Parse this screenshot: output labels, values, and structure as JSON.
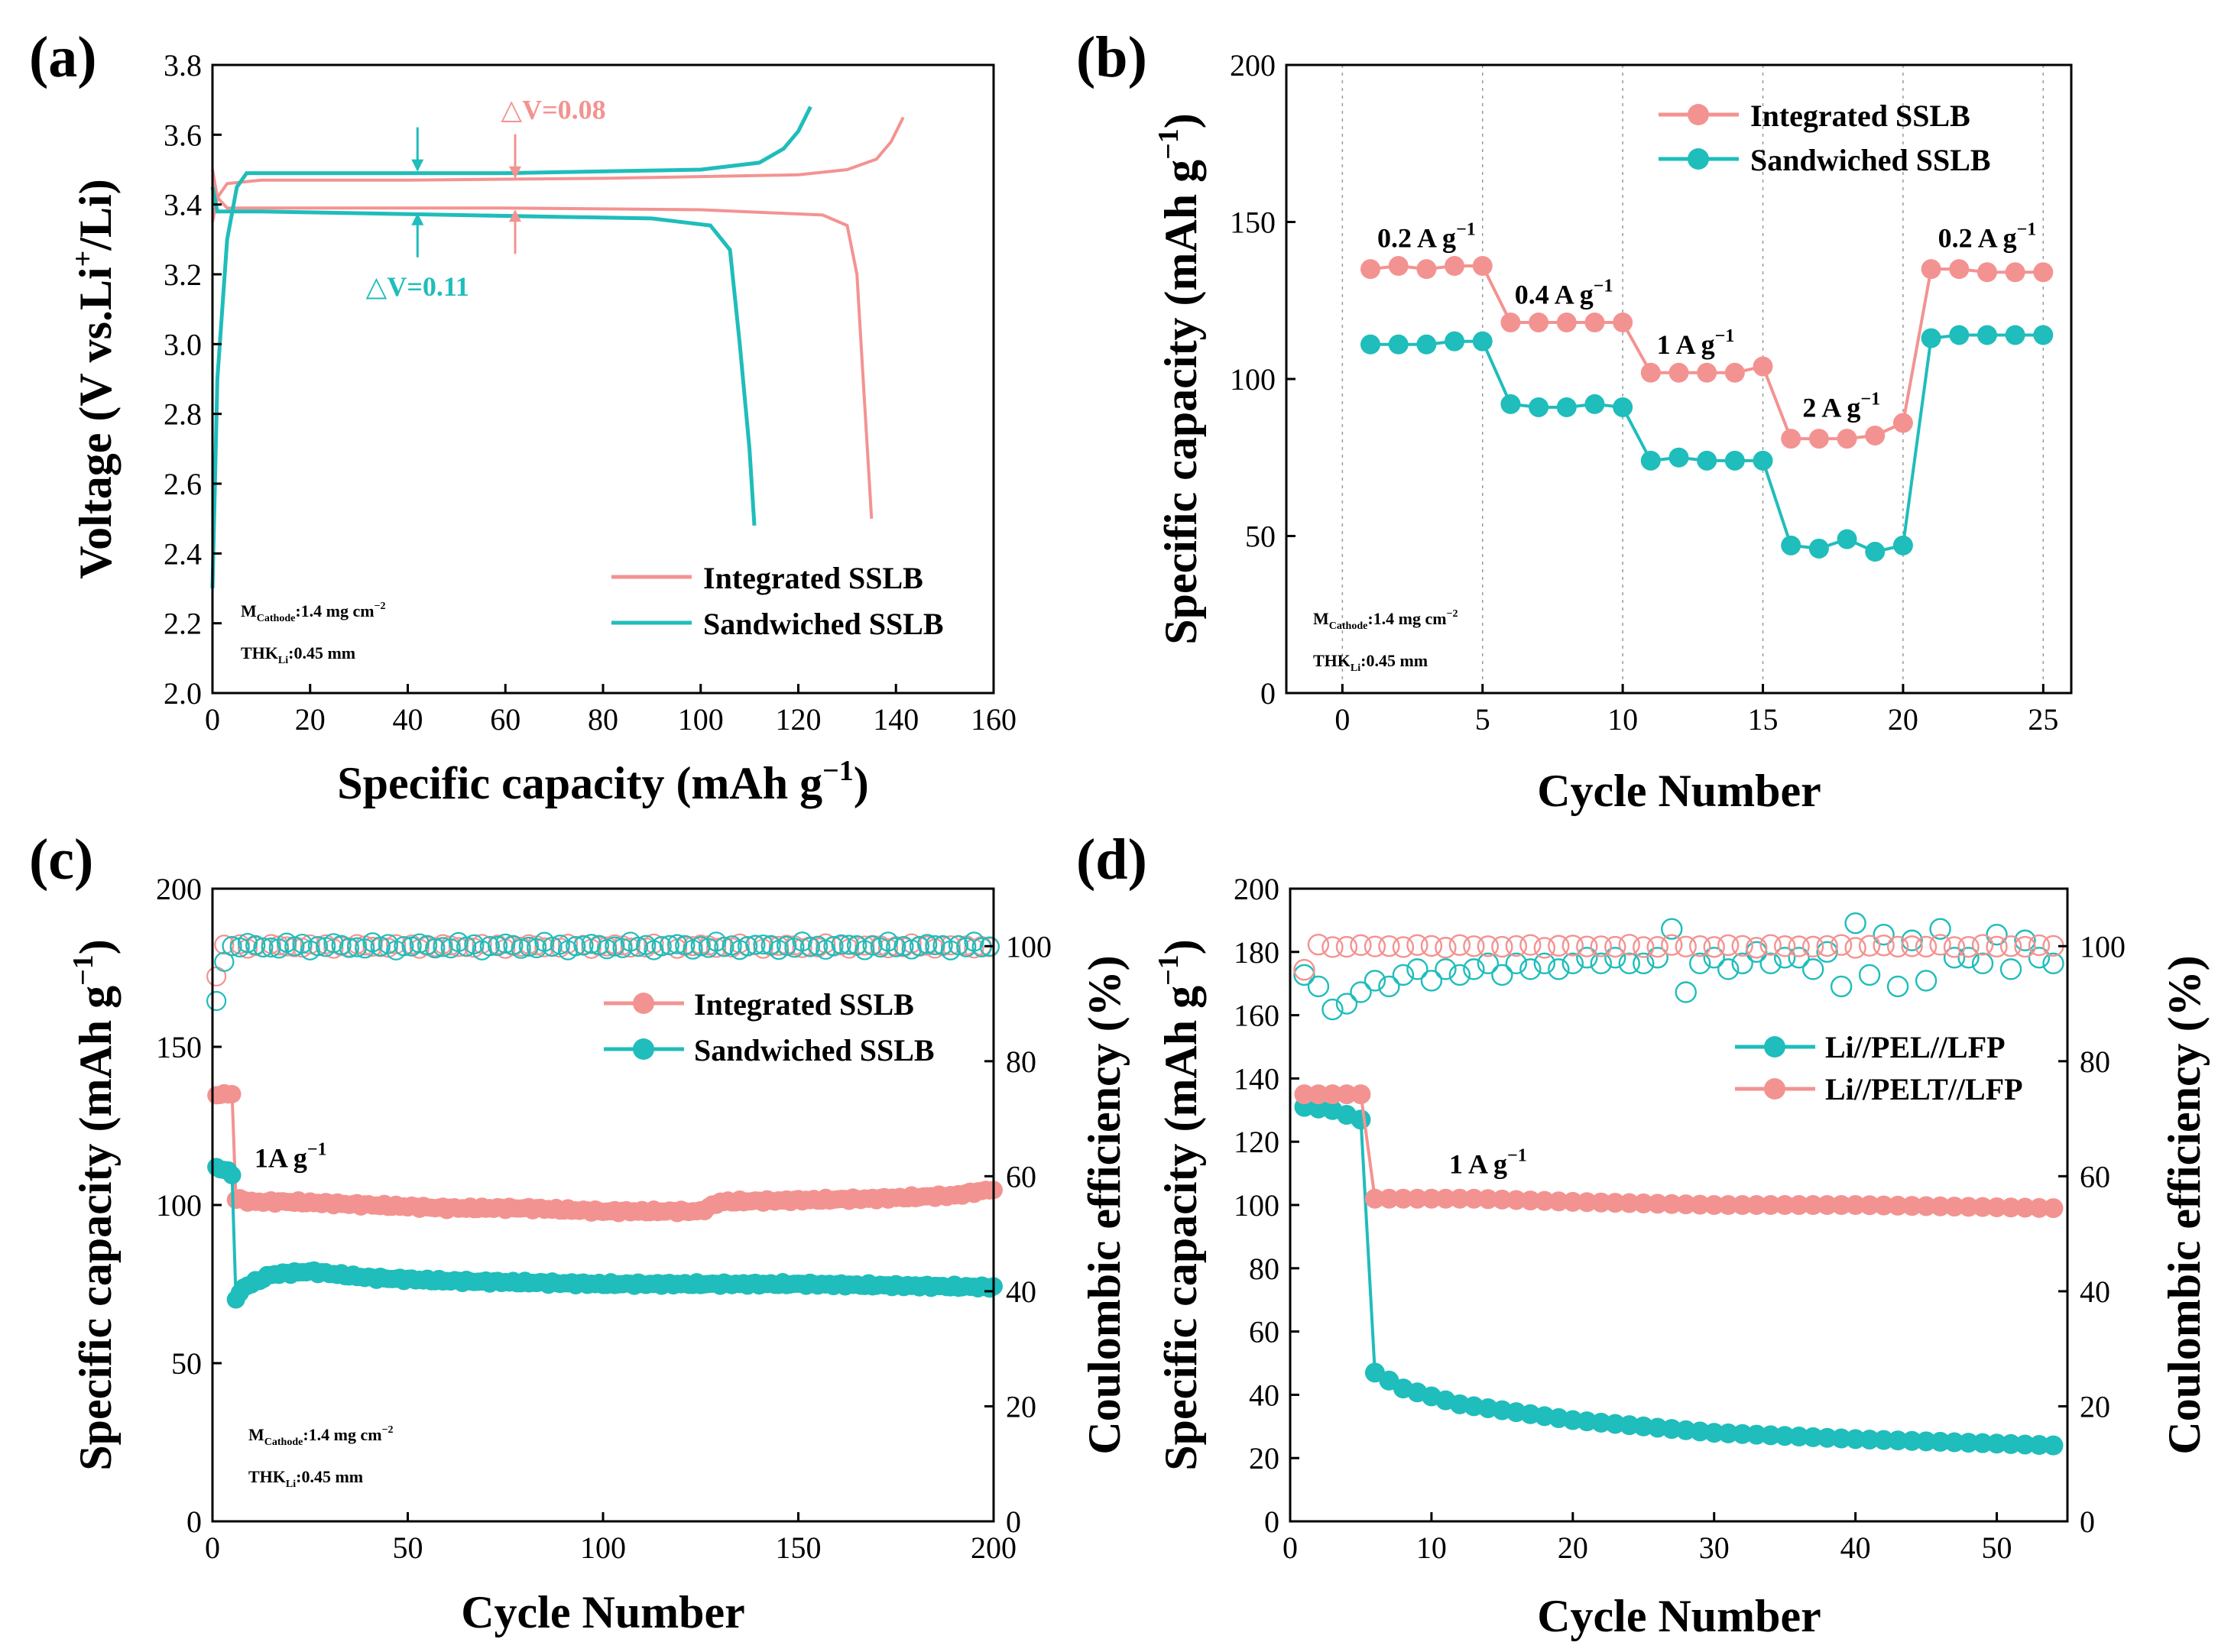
{
  "colors": {
    "integrated": "#f39391",
    "sandwiched": "#1fbdbb",
    "axis": "#000000",
    "grid": "#9a9a9a"
  },
  "chart_data": [
    {
      "panel_label": "(a)",
      "type": "line",
      "xlabel_main": "Specific capacity (mAh g",
      "xlabel_sup": "−1",
      "xlabel_end": ")",
      "ylabel_main": "Voltage (V vs.Li",
      "ylabel_sup": "+",
      "ylabel_end": "/Li)",
      "xlim": [
        0,
        160
      ],
      "ylim": [
        2.0,
        3.8
      ],
      "xticks": [
        0,
        20,
        40,
        60,
        80,
        100,
        120,
        140,
        160
      ],
      "yticks": [
        2.0,
        2.2,
        2.4,
        2.6,
        2.8,
        3.0,
        3.2,
        3.4,
        3.6,
        3.8
      ],
      "ytick_labels": [
        "2.0",
        "2.2",
        "2.4",
        "2.6",
        "2.8",
        "3.0",
        "3.2",
        "3.4",
        "3.6",
        "3.8"
      ],
      "series": [
        {
          "name": "Integrated SSLB",
          "curves": [
            {
              "x": [
                0,
                1,
                3,
                10,
                40,
                80,
                120,
                130,
                136,
                139,
                141.5
              ],
              "y": [
                3.35,
                3.42,
                3.46,
                3.47,
                3.47,
                3.475,
                3.485,
                3.5,
                3.53,
                3.58,
                3.65
              ]
            },
            {
              "x": [
                0,
                1,
                3,
                20,
                60,
                100,
                125,
                130,
                132,
                133.5,
                135
              ],
              "y": [
                3.5,
                3.42,
                3.39,
                3.39,
                3.39,
                3.385,
                3.37,
                3.34,
                3.2,
                2.85,
                2.5
              ]
            }
          ]
        },
        {
          "name": "Sandwiched SSLB",
          "curves": [
            {
              "x": [
                0,
                1,
                3,
                5,
                7,
                20,
                60,
                100,
                112,
                117,
                120,
                122.5
              ],
              "y": [
                2.3,
                2.9,
                3.3,
                3.45,
                3.49,
                3.49,
                3.49,
                3.5,
                3.52,
                3.56,
                3.61,
                3.68
              ]
            },
            {
              "x": [
                0,
                1,
                3,
                10,
                50,
                90,
                102,
                106,
                108,
                110,
                111
              ],
              "y": [
                3.45,
                3.38,
                3.38,
                3.38,
                3.37,
                3.36,
                3.34,
                3.27,
                3.0,
                2.7,
                2.48
              ]
            }
          ]
        }
      ],
      "annotations": [
        {
          "text": "△V=0.08",
          "series": "Integrated SSLB",
          "x": 62,
          "y_top": 3.47,
          "y_bottom": 3.39
        },
        {
          "text": "△V=0.11",
          "series": "Sandwiched SSLB",
          "x": 42,
          "y_top": 3.49,
          "y_bottom": 3.38
        }
      ],
      "notes": [
        {
          "main": "M",
          "sub": "Cathode",
          "rest": ":1.4 mg cm",
          "sup": "−2"
        },
        {
          "main": "THK",
          "sub": "Li",
          "rest": ":0.45 mm",
          "sup": ""
        }
      ],
      "legend": [
        "Integrated SSLB",
        "Sandwiched SSLB"
      ],
      "legend_position": "bottom-right"
    },
    {
      "panel_label": "(b)",
      "type": "line",
      "xlabel": "Cycle Number",
      "ylabel_main": "Specific capacity (mAh g",
      "ylabel_sup": "−1",
      "ylabel_end": ")",
      "xlim": [
        -2,
        26
      ],
      "ylim": [
        0,
        200
      ],
      "xticks": [
        0,
        5,
        10,
        15,
        20,
        25
      ],
      "yticks": [
        0,
        50,
        100,
        150,
        200
      ],
      "vlines": [
        0,
        5,
        10,
        15,
        20,
        25
      ],
      "series": [
        {
          "name": "Integrated SSLB",
          "x": [
            1,
            2,
            3,
            4,
            5,
            6,
            7,
            8,
            9,
            10,
            11,
            12,
            13,
            14,
            15,
            16,
            17,
            18,
            19,
            20,
            21,
            22,
            23,
            24,
            25
          ],
          "values": [
            135,
            136,
            135,
            136,
            136,
            118,
            118,
            118,
            118,
            118,
            102,
            102,
            102,
            102,
            104,
            81,
            81,
            81,
            82,
            86,
            135,
            135,
            134,
            134,
            134
          ]
        },
        {
          "name": "Sandwiched SSLB",
          "x": [
            1,
            2,
            3,
            4,
            5,
            6,
            7,
            8,
            9,
            10,
            11,
            12,
            13,
            14,
            15,
            16,
            17,
            18,
            19,
            20,
            21,
            22,
            23,
            24,
            25
          ],
          "values": [
            111,
            111,
            111,
            112,
            112,
            92,
            91,
            91,
            92,
            91,
            74,
            75,
            74,
            74,
            74,
            47,
            46,
            49,
            45,
            47,
            113,
            114,
            114,
            114,
            114
          ]
        }
      ],
      "rate_labels": [
        {
          "text": "0.2 A g",
          "sup": "−1",
          "x": 3,
          "y": 142
        },
        {
          "text": "0.4 A g",
          "sup": "−1",
          "x": 7.9,
          "y": 124
        },
        {
          "text": "1 A g",
          "sup": "−1",
          "x": 12.6,
          "y": 108
        },
        {
          "text": "2 A g",
          "sup": "−1",
          "x": 17.8,
          "y": 88
        },
        {
          "text": "0.2 A g",
          "sup": "−1",
          "x": 23,
          "y": 142
        }
      ],
      "notes": [
        {
          "main": "M",
          "sub": "Cathode",
          "rest": ":1.4 mg cm",
          "sup": "−2"
        },
        {
          "main": "THK",
          "sub": "Li",
          "rest": ":0.45 mm",
          "sup": ""
        }
      ],
      "legend": [
        "Integrated SSLB",
        "Sandwiched SSLB"
      ],
      "legend_position": "top-right"
    },
    {
      "panel_label": "(c)",
      "type": "scatter",
      "xlabel": "Cycle Number",
      "ylabel_main": "Specific capacity (mAh g",
      "ylabel_sup": "−1",
      "ylabel_end": ")",
      "ylabel_right": "Coulombic efficiency (%)",
      "xlim": [
        0,
        200
      ],
      "ylim": [
        0,
        200
      ],
      "ylim_right": [
        0,
        110
      ],
      "xticks": [
        0,
        50,
        100,
        150,
        200
      ],
      "yticks": [
        0,
        50,
        100,
        150,
        200
      ],
      "yticks_right": [
        0,
        20,
        40,
        60,
        80,
        100
      ],
      "capacity_series": [
        {
          "name": "Integrated SSLB",
          "sampled_every": 1,
          "x_start": 1,
          "profile": [
            [
              1,
              135
            ],
            [
              5,
              135
            ],
            [
              6,
              102
            ],
            [
              10,
              101
            ],
            [
              20,
              101
            ],
            [
              40,
              100
            ],
            [
              60,
              99
            ],
            [
              80,
              99
            ],
            [
              100,
              98
            ],
            [
              125,
              98
            ],
            [
              130,
              101
            ],
            [
              170,
              102
            ],
            [
              190,
              103
            ],
            [
              200,
              105
            ]
          ]
        },
        {
          "name": "Sandwiched SSLB",
          "sampled_every": 1,
          "x_start": 1,
          "profile": [
            [
              1,
              112
            ],
            [
              5,
              110
            ],
            [
              6,
              70
            ],
            [
              8,
              74
            ],
            [
              15,
              78
            ],
            [
              25,
              79
            ],
            [
              40,
              77
            ],
            [
              60,
              76
            ],
            [
              100,
              75
            ],
            [
              150,
              75
            ],
            [
              200,
              74
            ]
          ]
        }
      ],
      "efficiency_series": [
        {
          "name": "Integrated SSLB",
          "profile": [
            [
              1,
              95
            ],
            [
              3,
              100
            ],
            [
              200,
              100
            ]
          ],
          "noise": 0.5
        },
        {
          "name": "Sandwiched SSLB",
          "profile": [
            [
              1,
              90
            ],
            [
              3,
              98
            ],
            [
              5,
              100
            ],
            [
              200,
              100
            ]
          ],
          "noise": 0.8
        }
      ],
      "rate_labels": [
        {
          "text": "1A g",
          "sup": "−1",
          "x": 20,
          "y": 112
        }
      ],
      "notes": [
        {
          "main": "M",
          "sub": "Cathode",
          "rest": ":1.4 mg cm",
          "sup": "−2"
        },
        {
          "main": "THK",
          "sub": "Li",
          "rest": ":0.45 mm",
          "sup": ""
        }
      ],
      "legend": [
        "Integrated SSLB",
        "Sandwiched SSLB"
      ],
      "legend_position": "top-right"
    },
    {
      "panel_label": "(d)",
      "type": "scatter",
      "xlabel": "Cycle Number",
      "ylabel_main": "Specific capacity (mAh g",
      "ylabel_sup": "−1",
      "ylabel_end": ")",
      "ylabel_right": "Coulombic efficiency (%)",
      "xlim": [
        0,
        55
      ],
      "ylim": [
        0,
        200
      ],
      "ylim_right": [
        0,
        110
      ],
      "xticks": [
        0,
        10,
        20,
        30,
        40,
        50
      ],
      "yticks": [
        0,
        20,
        40,
        60,
        80,
        100,
        120,
        140,
        160,
        180,
        200
      ],
      "yticks_right": [
        0,
        20,
        40,
        60,
        80,
        100
      ],
      "capacity_series": [
        {
          "name": "Li//PEL//LFP",
          "x_start": 1,
          "x_end": 54,
          "profile": [
            [
              1,
              131
            ],
            [
              3,
              130
            ],
            [
              5,
              127
            ],
            [
              6,
              47
            ],
            [
              8,
              42
            ],
            [
              12,
              37
            ],
            [
              20,
              32
            ],
            [
              30,
              28
            ],
            [
              40,
              26
            ],
            [
              54,
              24
            ]
          ]
        },
        {
          "name": "Li//PELT//LFP",
          "x_start": 1,
          "x_end": 54,
          "profile": [
            [
              1,
              135
            ],
            [
              5,
              135
            ],
            [
              6,
              102
            ],
            [
              13,
              102
            ],
            [
              20,
              101
            ],
            [
              30,
              100
            ],
            [
              40,
              100
            ],
            [
              54,
              99
            ]
          ]
        }
      ],
      "efficiency_series": [
        {
          "name": "Li//PEL//LFP",
          "values": [
            95,
            93,
            89,
            90,
            92,
            94,
            93,
            95,
            96,
            94,
            96,
            95,
            96,
            97,
            95,
            97,
            96,
            97,
            96,
            97,
            98,
            97,
            98,
            97,
            97,
            98,
            103,
            92,
            97,
            98,
            96,
            97,
            99,
            97,
            98,
            98,
            96,
            99,
            93,
            104,
            95,
            102,
            93,
            101,
            94,
            103,
            98,
            98,
            97,
            102,
            96,
            101,
            98,
            97
          ]
        },
        {
          "name": "Li//PELT//LFP",
          "profile": [
            [
              1,
              96
            ],
            [
              2,
              100
            ],
            [
              54,
              100
            ]
          ],
          "noise": 0.3
        }
      ],
      "rate_labels": [
        {
          "text": "1 A g",
          "sup": "−1",
          "x": 14,
          "y": 110
        }
      ],
      "legend": [
        "Li//PEL//LFP",
        "Li//PELT//LFP"
      ],
      "legend_position": "center-right"
    }
  ]
}
